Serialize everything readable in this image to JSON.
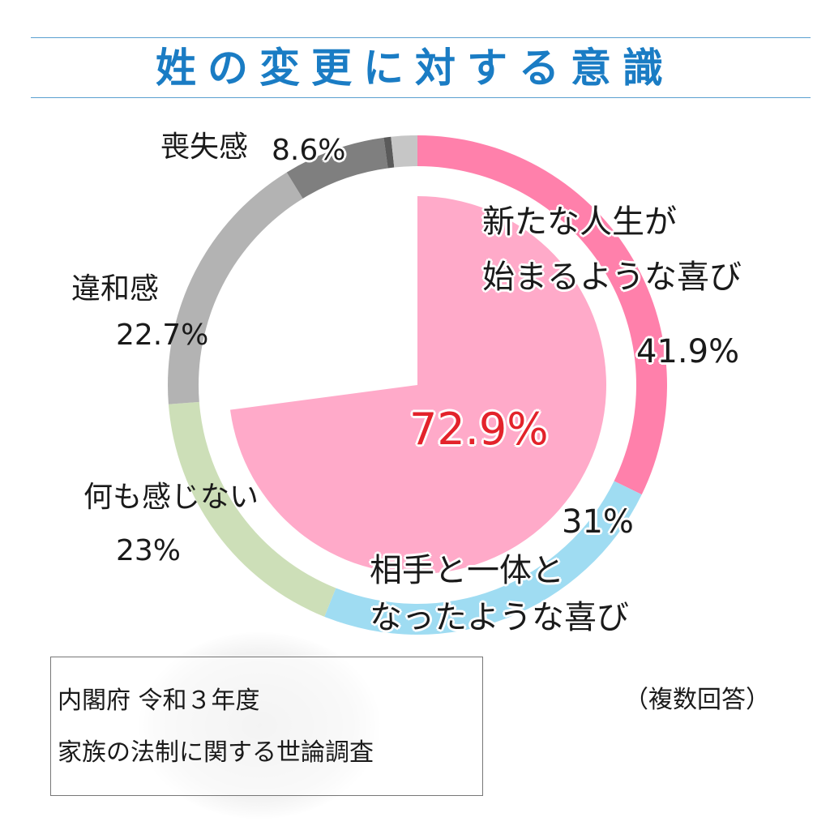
{
  "title": "姓の変更に対する意識",
  "chart_data": {
    "type": "pie",
    "ring": {
      "series": [
        {
          "name": "新たな人生が始まるような喜び",
          "value": 41.9,
          "label": "41.9%",
          "color": "#ff80ab"
        },
        {
          "name": "相手と一体となったような喜び",
          "value": 31,
          "label": "31%",
          "color": "#9fdcf2"
        },
        {
          "name": "何も感じない",
          "value": 23,
          "label": "23%",
          "color": "#cddfb8"
        },
        {
          "name": "違和感",
          "value": 22.7,
          "label": "22.7%",
          "color": "#b3b3b3"
        },
        {
          "name": "喪失感",
          "value": 8.6,
          "label": "8.6%",
          "color": "#7f7f7f"
        },
        {
          "name": "",
          "value": 0.6,
          "label": "",
          "color": "#5a5a5a"
        },
        {
          "name": "",
          "value": 2.2,
          "label": "",
          "color": "#c6c6c6"
        }
      ]
    },
    "inner": {
      "value": 72.9,
      "label": "72.9%",
      "color": "#ffaac9"
    }
  },
  "labels": {
    "joy_new_line1": "新たな人生が",
    "joy_new_line2": "始まるような喜び",
    "joy_union_line1": "相手と一体と",
    "joy_union_line2": "なったような喜び"
  },
  "source": {
    "line1": "内閣府 令和３年度",
    "line2": "家族の法制に関する世論調査"
  },
  "note": "（複数回答）"
}
